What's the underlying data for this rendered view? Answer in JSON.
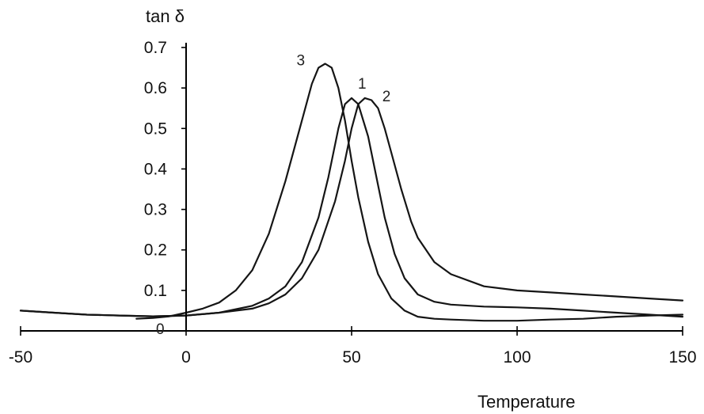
{
  "chart_data": {
    "type": "line",
    "title": "",
    "xlabel": "Temperature",
    "ylabel": "tan δ",
    "xlim": [
      -50,
      150
    ],
    "ylim": [
      0,
      0.7
    ],
    "x_ticks": [
      -50,
      0,
      50,
      100,
      150
    ],
    "x_tick_labels": [
      "-50",
      "0",
      "50",
      "100",
      "150"
    ],
    "y_ticks": [
      0.1,
      0.2,
      0.3,
      0.4,
      0.5,
      0.6,
      0.7
    ],
    "y_tick_labels": [
      "0.1",
      "0.2",
      "0.3",
      "0.4",
      "0.5",
      "0.6",
      "0.7"
    ],
    "origin_label": "0",
    "grid": false,
    "legend": "none",
    "series": [
      {
        "name": "1",
        "color": "#151515",
        "x": [
          -50,
          -40,
          -30,
          -20,
          -10,
          0,
          10,
          20,
          25,
          30,
          35,
          40,
          43,
          46,
          48,
          50,
          52,
          55,
          58,
          60,
          63,
          66,
          70,
          75,
          80,
          90,
          100,
          110,
          120,
          130,
          140,
          150
        ],
        "y": [
          0.05,
          0.045,
          0.04,
          0.038,
          0.036,
          0.038,
          0.045,
          0.062,
          0.08,
          0.11,
          0.17,
          0.28,
          0.38,
          0.5,
          0.56,
          0.575,
          0.56,
          0.48,
          0.36,
          0.28,
          0.19,
          0.13,
          0.09,
          0.072,
          0.065,
          0.06,
          0.058,
          0.055,
          0.05,
          0.045,
          0.04,
          0.035
        ]
      },
      {
        "name": "2",
        "color": "#151515",
        "x": [
          -50,
          -40,
          -30,
          -20,
          -10,
          0,
          10,
          20,
          25,
          30,
          35,
          40,
          45,
          48,
          50,
          52,
          54,
          56,
          58,
          60,
          62,
          65,
          68,
          70,
          75,
          80,
          90,
          100,
          110,
          120,
          130,
          140,
          150
        ],
        "y": [
          0.05,
          0.045,
          0.04,
          0.038,
          0.036,
          0.038,
          0.045,
          0.055,
          0.068,
          0.09,
          0.13,
          0.2,
          0.32,
          0.42,
          0.5,
          0.56,
          0.575,
          0.57,
          0.55,
          0.5,
          0.44,
          0.35,
          0.27,
          0.23,
          0.17,
          0.14,
          0.11,
          0.1,
          0.095,
          0.09,
          0.085,
          0.08,
          0.075
        ]
      },
      {
        "name": "3",
        "color": "#151515",
        "x": [
          -15,
          -10,
          -5,
          0,
          5,
          10,
          15,
          20,
          25,
          30,
          35,
          38,
          40,
          42,
          44,
          46,
          48,
          50,
          52,
          55,
          58,
          62,
          66,
          70,
          75,
          80,
          90,
          100,
          110,
          120,
          130,
          140,
          150
        ],
        "y": [
          0.03,
          0.032,
          0.036,
          0.045,
          0.055,
          0.07,
          0.1,
          0.15,
          0.24,
          0.37,
          0.52,
          0.61,
          0.65,
          0.66,
          0.65,
          0.6,
          0.52,
          0.42,
          0.33,
          0.22,
          0.14,
          0.08,
          0.05,
          0.035,
          0.03,
          0.028,
          0.025,
          0.025,
          0.028,
          0.03,
          0.035,
          0.038,
          0.04
        ]
      }
    ]
  }
}
